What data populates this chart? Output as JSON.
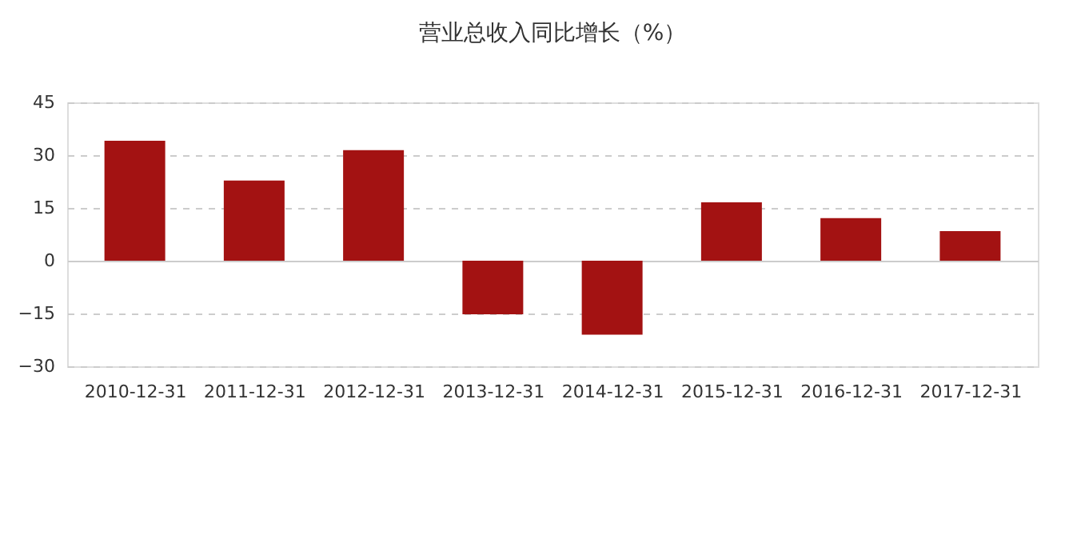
{
  "chart_data": {
    "type": "bar",
    "title": "营业总收入同比增长（%）",
    "categories": [
      "2010-12-31",
      "2011-12-31",
      "2012-12-31",
      "2013-12-31",
      "2014-12-31",
      "2015-12-31",
      "2016-12-31",
      "2017-12-31"
    ],
    "values": [
      34.1,
      22.8,
      31.4,
      -15.2,
      -21.0,
      16.6,
      12.1,
      8.4
    ],
    "color": "#a31212",
    "ylim": [
      -30,
      45
    ],
    "yticks": [
      -30,
      -15,
      0,
      15,
      30,
      45
    ],
    "grid": "y"
  }
}
